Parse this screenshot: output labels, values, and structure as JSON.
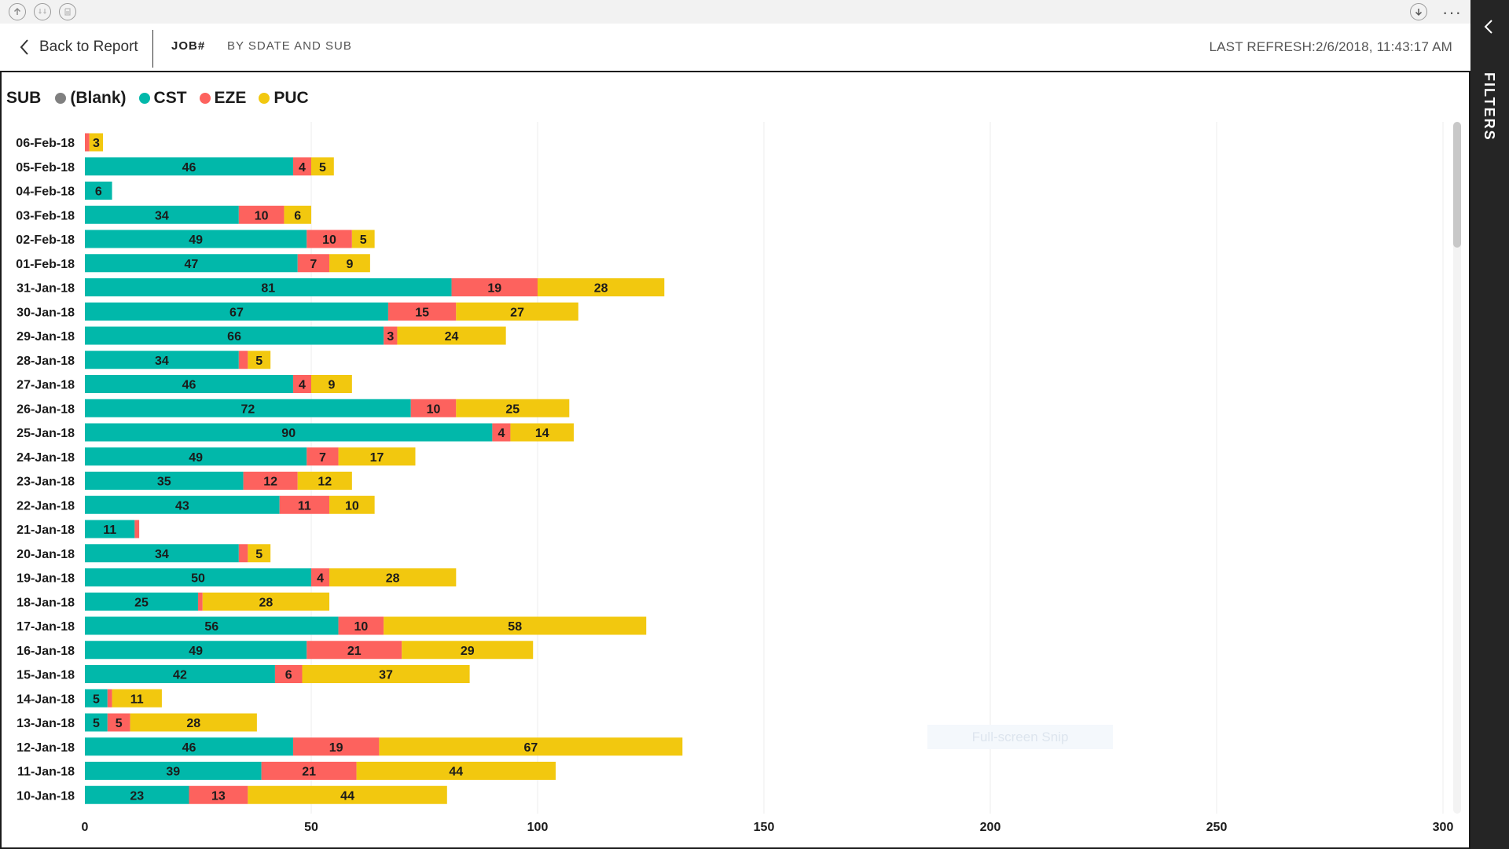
{
  "toolbar": {
    "icons": [
      "up-arrow-icon",
      "drill-down-icon",
      "expand-icon",
      "download-icon",
      "more-icon"
    ],
    "more_label": "···"
  },
  "nav": {
    "back_label": "Back to Report",
    "tabs": [
      {
        "label": "JOB#",
        "active": true
      },
      {
        "label": "BY SDATE AND SUB",
        "active": false
      }
    ],
    "last_refresh": "LAST REFRESH:2/6/2018, 11:43:17 AM"
  },
  "filters_pane": {
    "label": "FILTERS"
  },
  "snip_label": "Full-screen Snip",
  "colors": {
    "blank": "#808080",
    "cst": "#01B8AA",
    "eze": "#FD625E",
    "puc": "#F2C80F"
  },
  "chart_data": {
    "type": "bar",
    "orientation": "horizontal",
    "stacked": true,
    "legend_title": "SUB",
    "legend_position": "top-left",
    "categories": [
      "06-Feb-18",
      "05-Feb-18",
      "04-Feb-18",
      "03-Feb-18",
      "02-Feb-18",
      "01-Feb-18",
      "31-Jan-18",
      "30-Jan-18",
      "29-Jan-18",
      "28-Jan-18",
      "27-Jan-18",
      "26-Jan-18",
      "25-Jan-18",
      "24-Jan-18",
      "23-Jan-18",
      "22-Jan-18",
      "21-Jan-18",
      "20-Jan-18",
      "19-Jan-18",
      "18-Jan-18",
      "17-Jan-18",
      "16-Jan-18",
      "15-Jan-18",
      "14-Jan-18",
      "13-Jan-18",
      "12-Jan-18",
      "11-Jan-18",
      "10-Jan-18"
    ],
    "series": [
      {
        "name": "(Blank)",
        "values": [
          0,
          0,
          0,
          0,
          0,
          0,
          0,
          0,
          0,
          0,
          0,
          0,
          0,
          0,
          0,
          0,
          0,
          0,
          0,
          0,
          0,
          0,
          0,
          0,
          0,
          0,
          0,
          0
        ]
      },
      {
        "name": "CST",
        "values": [
          0,
          46,
          6,
          34,
          49,
          47,
          81,
          67,
          66,
          34,
          46,
          72,
          90,
          49,
          35,
          43,
          11,
          34,
          50,
          25,
          56,
          49,
          42,
          5,
          5,
          46,
          39,
          23
        ]
      },
      {
        "name": "EZE",
        "values": [
          1,
          4,
          0,
          10,
          10,
          7,
          19,
          15,
          3,
          2,
          4,
          10,
          4,
          7,
          12,
          11,
          1,
          2,
          4,
          1,
          10,
          21,
          6,
          1,
          5,
          19,
          21,
          13
        ]
      },
      {
        "name": "PUC",
        "values": [
          3,
          5,
          0,
          6,
          5,
          9,
          28,
          27,
          24,
          5,
          9,
          25,
          14,
          17,
          12,
          10,
          0,
          5,
          28,
          28,
          58,
          29,
          37,
          11,
          28,
          67,
          44,
          44
        ]
      }
    ],
    "data_labels": [
      [
        null,
        null,
        null,
        "3"
      ],
      [
        null,
        "46",
        "4",
        "5"
      ],
      [
        null,
        "6",
        null,
        null
      ],
      [
        null,
        "34",
        "10",
        "6"
      ],
      [
        null,
        "49",
        "10",
        "5"
      ],
      [
        null,
        "47",
        "7",
        "9"
      ],
      [
        null,
        "81",
        "19",
        "28"
      ],
      [
        null,
        "67",
        "15",
        "27"
      ],
      [
        null,
        "66",
        "3",
        "24"
      ],
      [
        null,
        "34",
        null,
        "5"
      ],
      [
        null,
        "46",
        "4",
        "9"
      ],
      [
        null,
        "72",
        "10",
        "25"
      ],
      [
        null,
        "90",
        "4",
        "14"
      ],
      [
        null,
        "49",
        "7",
        "17"
      ],
      [
        null,
        "35",
        "12",
        "12"
      ],
      [
        null,
        "43",
        "11",
        "10"
      ],
      [
        null,
        "11",
        null,
        null
      ],
      [
        null,
        "34",
        null,
        "5"
      ],
      [
        null,
        "50",
        "4",
        "28"
      ],
      [
        null,
        "25",
        null,
        "28"
      ],
      [
        null,
        "56",
        "10",
        "58"
      ],
      [
        null,
        "49",
        "21",
        "29"
      ],
      [
        null,
        "42",
        "6",
        "37"
      ],
      [
        null,
        "5",
        null,
        "11"
      ],
      [
        null,
        "5",
        "5",
        "28"
      ],
      [
        null,
        "46",
        "19",
        "67"
      ],
      [
        null,
        "39",
        "21",
        "44"
      ],
      [
        null,
        "23",
        "13",
        "44"
      ]
    ],
    "xlim": [
      0,
      300
    ],
    "xticks": [
      0,
      50,
      100,
      150,
      200,
      250,
      300
    ],
    "xtick_labels": [
      "0",
      "50",
      "100",
      "150",
      "200",
      "250",
      "300"
    ],
    "grid": "vertical"
  }
}
